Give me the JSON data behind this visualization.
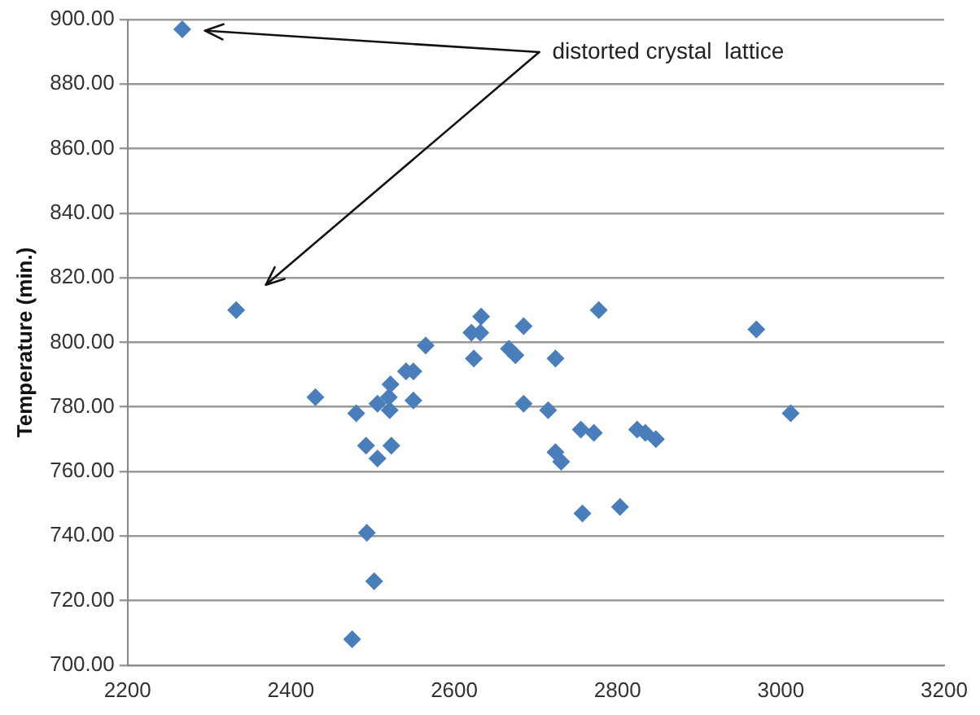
{
  "chart_data": {
    "type": "scatter",
    "ylabel": "Temperature (min.)",
    "annotations": [
      "distorted crystal  lattice"
    ],
    "x": [
      2267,
      2333,
      2430,
      2480,
      2492,
      2506,
      2523,
      2493,
      2502,
      2475,
      2506,
      2521,
      2520,
      2522,
      2541,
      2550,
      2550,
      2565,
      2624,
      2621,
      2632,
      2633,
      2667,
      2675,
      2685,
      2685,
      2724,
      2715,
      2724,
      2731,
      2755,
      2771,
      2757,
      2777,
      2803,
      2970,
      3012,
      2824,
      2834,
      2847
    ],
    "series": [
      {
        "color": "#4a7ebb",
        "values": [
          897,
          810,
          783,
          778,
          768,
          764,
          768,
          741,
          726,
          708,
          781,
          779,
          783,
          787,
          791,
          791,
          782,
          799,
          795,
          803,
          803,
          808,
          798,
          796,
          805,
          781,
          795,
          779,
          766,
          763,
          773,
          772,
          747,
          810,
          749,
          804,
          778,
          773,
          772,
          770
        ]
      }
    ],
    "xlim": [
      2200,
      3200
    ],
    "xticks": [
      2200,
      2400,
      2600,
      2800,
      3000,
      3200
    ],
    "ylim": [
      700,
      900
    ],
    "yticks": [
      {
        "value": 700,
        "label": "700.00"
      },
      {
        "value": 720,
        "label": "720.00"
      },
      {
        "value": 740,
        "label": "740.00"
      },
      {
        "value": 760,
        "label": "760.00"
      },
      {
        "value": 780,
        "label": "780.00"
      },
      {
        "value": 800,
        "label": "800.00"
      },
      {
        "value": 820,
        "label": "820.00"
      },
      {
        "value": 840,
        "label": "840.00"
      },
      {
        "value": 860,
        "label": "860.00"
      },
      {
        "value": 880,
        "label": "880.00"
      },
      {
        "value": 900,
        "label": "900.00"
      }
    ],
    "grid": "y",
    "legend": false,
    "marker": "diamond"
  }
}
